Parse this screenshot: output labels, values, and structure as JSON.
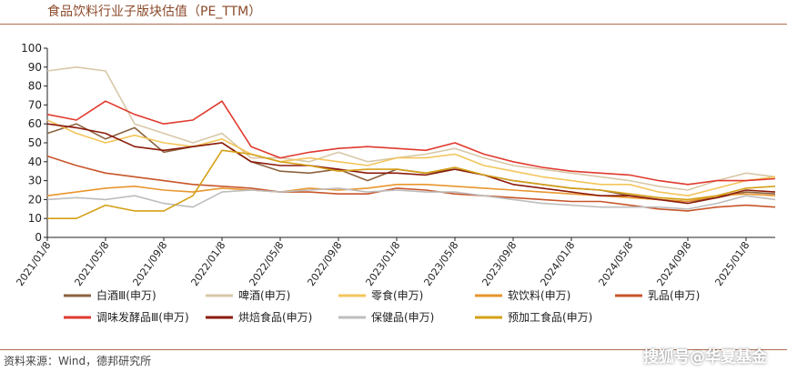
{
  "title": "食品饮料行业子版块估值（PE_TTM）",
  "source": "资料来源：Wind，德邦研究所",
  "watermark": "搜狐号@华夏基金",
  "chart_data": {
    "type": "line",
    "ylim": [
      0,
      100
    ],
    "y_ticks": [
      0,
      10,
      20,
      30,
      40,
      50,
      60,
      70,
      80,
      90,
      100
    ],
    "x_ticks": [
      "2021/01/8",
      "2021/05/8",
      "2021/09/8",
      "2022/01/8",
      "2022/05/8",
      "2022/09/8",
      "2023/01/8",
      "2023/05/8",
      "2023/09/8",
      "2024/01/8",
      "2024/05/8",
      "2024/09/8",
      "2025/01/8"
    ],
    "x": [
      "2021/01/8",
      "2021/03/8",
      "2021/05/8",
      "2021/07/8",
      "2021/09/8",
      "2021/11/8",
      "2022/01/8",
      "2022/03/8",
      "2022/05/8",
      "2022/07/8",
      "2022/09/8",
      "2022/11/8",
      "2023/01/8",
      "2023/03/8",
      "2023/05/8",
      "2023/07/8",
      "2023/09/8",
      "2023/11/8",
      "2024/01/8",
      "2024/03/8",
      "2024/05/8",
      "2024/07/8",
      "2024/09/8",
      "2024/11/8",
      "2025/01/8",
      "2025/03/8"
    ],
    "grid": false,
    "legend_position": "bottom",
    "series": [
      {
        "name": "白酒Ⅲ(申万)",
        "color": "#8B6340",
        "values": [
          55,
          60,
          52,
          58,
          45,
          48,
          50,
          40,
          35,
          34,
          36,
          30,
          36,
          34,
          36,
          33,
          30,
          28,
          26,
          25,
          22,
          20,
          19,
          21,
          24,
          23
        ]
      },
      {
        "name": "啤酒(申万)",
        "color": "#D8C8A8",
        "values": [
          88,
          90,
          88,
          60,
          55,
          50,
          55,
          42,
          42,
          40,
          45,
          40,
          42,
          44,
          47,
          42,
          38,
          36,
          34,
          32,
          30,
          27,
          25,
          30,
          34,
          32
        ]
      },
      {
        "name": "零食(申万)",
        "color": "#F3C55B",
        "values": [
          62,
          55,
          50,
          54,
          50,
          48,
          52,
          44,
          40,
          42,
          40,
          38,
          42,
          42,
          44,
          38,
          35,
          32,
          30,
          28,
          28,
          24,
          22,
          26,
          30,
          32
        ]
      },
      {
        "name": "软饮料(申万)",
        "color": "#E8962E",
        "values": [
          22,
          24,
          26,
          27,
          25,
          24,
          26,
          25,
          24,
          26,
          25,
          26,
          28,
          28,
          27,
          26,
          25,
          24,
          23,
          22,
          21,
          20,
          19,
          22,
          23,
          22
        ]
      },
      {
        "name": "乳品(申万)",
        "color": "#C8552A",
        "values": [
          43,
          38,
          34,
          32,
          30,
          28,
          27,
          26,
          24,
          24,
          23,
          23,
          26,
          25,
          23,
          22,
          21,
          20,
          19,
          19,
          17,
          15,
          14,
          16,
          17,
          16
        ]
      },
      {
        "name": "调味发酵品Ⅲ(申万)",
        "color": "#E03A2E",
        "values": [
          65,
          62,
          72,
          65,
          60,
          62,
          72,
          48,
          42,
          45,
          47,
          48,
          47,
          46,
          50,
          44,
          40,
          37,
          35,
          34,
          33,
          30,
          28,
          30,
          30,
          31
        ]
      },
      {
        "name": "烘焙食品(申万)",
        "color": "#8B1A0A",
        "values": [
          60,
          58,
          55,
          48,
          46,
          48,
          50,
          40,
          38,
          38,
          36,
          34,
          34,
          33,
          36,
          33,
          28,
          26,
          24,
          22,
          22,
          20,
          18,
          21,
          25,
          24
        ]
      },
      {
        "name": "保健品(申万)",
        "color": "#BDBDBD",
        "values": [
          20,
          21,
          20,
          22,
          18,
          16,
          24,
          25,
          24,
          25,
          26,
          24,
          25,
          24,
          24,
          22,
          20,
          18,
          17,
          16,
          16,
          16,
          15,
          18,
          22,
          20
        ]
      },
      {
        "name": "预加工食品(申万)",
        "color": "#D4A017",
        "values": [
          10,
          10,
          17,
          14,
          14,
          22,
          46,
          44,
          40,
          38,
          35,
          36,
          36,
          34,
          37,
          33,
          30,
          28,
          26,
          25,
          23,
          21,
          20,
          22,
          26,
          27
        ]
      }
    ]
  }
}
